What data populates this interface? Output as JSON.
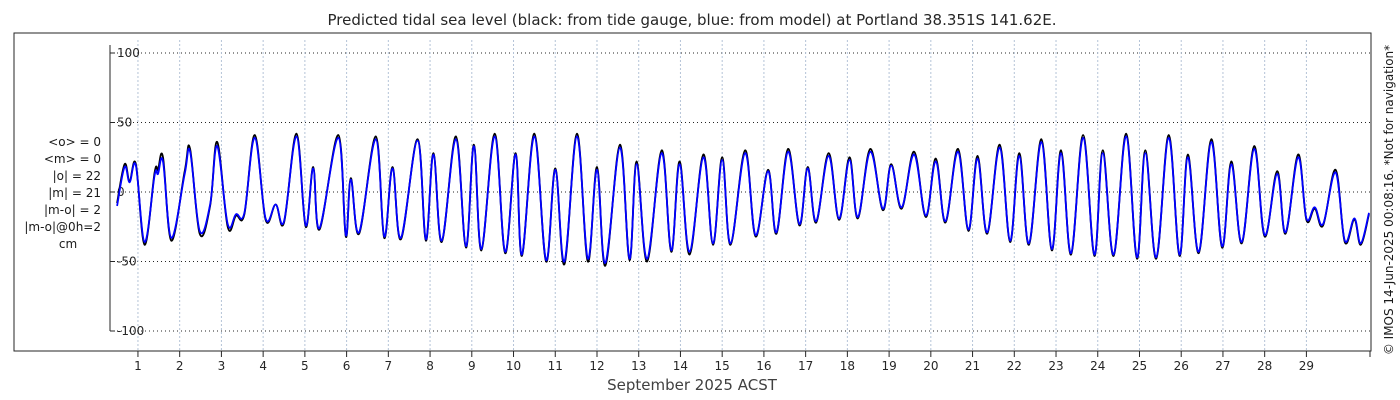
{
  "chart_data": {
    "type": "line",
    "title": "Predicted tidal sea level (black: from tide gauge, blue: from model) at Portland 38.351S 141.62E.",
    "xlabel": "September 2025 ACST",
    "ylabel": "",
    "xlim": [
      0.45,
      30.5
    ],
    "ylim": [
      -110,
      110
    ],
    "yticks": [
      -100,
      -50,
      0,
      50,
      100
    ],
    "ytick_labels": [
      "-100",
      "-50",
      "0",
      "50",
      "100"
    ],
    "xticks": [
      1,
      2,
      3,
      4,
      5,
      6,
      7,
      8,
      9,
      10,
      11,
      12,
      13,
      14,
      15,
      16,
      17,
      18,
      19,
      20,
      21,
      22,
      23,
      24,
      25,
      26,
      27,
      28,
      29
    ],
    "xtick_labels": [
      "1",
      "2",
      "3",
      "4",
      "5",
      "6",
      "7",
      "8",
      "9",
      "10",
      "11",
      "12",
      "13",
      "14",
      "15",
      "16",
      "17",
      "18",
      "19",
      "20",
      "21",
      "22",
      "23",
      "24",
      "25",
      "26",
      "27",
      "28",
      "29"
    ],
    "grid": true,
    "series": [
      {
        "name": "tide gauge",
        "color": "#000000",
        "points": [
          [
            0.5,
            -8
          ],
          [
            0.68,
            20
          ],
          [
            0.8,
            8
          ],
          [
            0.95,
            20
          ],
          [
            1.16,
            -38
          ],
          [
            1.4,
            14
          ],
          [
            1.48,
            16
          ],
          [
            1.6,
            25
          ],
          [
            1.8,
            -35
          ],
          [
            2.12,
            15
          ],
          [
            2.25,
            31
          ],
          [
            2.48,
            -30
          ],
          [
            2.73,
            -10
          ],
          [
            2.9,
            36
          ],
          [
            3.15,
            -25
          ],
          [
            3.35,
            -17
          ],
          [
            3.55,
            -16
          ],
          [
            3.8,
            41
          ],
          [
            4.06,
            -20
          ],
          [
            4.3,
            -9
          ],
          [
            4.5,
            -22
          ],
          [
            4.8,
            42
          ],
          [
            5.02,
            -25
          ],
          [
            5.2,
            18
          ],
          [
            5.35,
            -27
          ],
          [
            5.8,
            41
          ],
          [
            5.98,
            -32
          ],
          [
            6.1,
            10
          ],
          [
            6.3,
            -30
          ],
          [
            6.7,
            40
          ],
          [
            6.9,
            -33
          ],
          [
            7.1,
            18
          ],
          [
            7.3,
            -34
          ],
          [
            7.7,
            38
          ],
          [
            7.9,
            -35
          ],
          [
            8.08,
            28
          ],
          [
            8.28,
            -36
          ],
          [
            8.62,
            40
          ],
          [
            8.86,
            -40
          ],
          [
            9.05,
            34
          ],
          [
            9.23,
            -42
          ],
          [
            9.55,
            42
          ],
          [
            9.8,
            -44
          ],
          [
            10.05,
            28
          ],
          [
            10.2,
            -46
          ],
          [
            10.5,
            42
          ],
          [
            10.78,
            -50
          ],
          [
            11.0,
            17
          ],
          [
            11.22,
            -52
          ],
          [
            11.52,
            42
          ],
          [
            11.78,
            -50
          ],
          [
            12.0,
            18
          ],
          [
            12.2,
            -53
          ],
          [
            12.55,
            34
          ],
          [
            12.78,
            -49
          ],
          [
            12.95,
            22
          ],
          [
            13.2,
            -50
          ],
          [
            13.55,
            30
          ],
          [
            13.78,
            -43
          ],
          [
            13.98,
            22
          ],
          [
            14.22,
            -45
          ],
          [
            14.55,
            27
          ],
          [
            14.78,
            -38
          ],
          [
            15.0,
            25
          ],
          [
            15.2,
            -38
          ],
          [
            15.55,
            30
          ],
          [
            15.8,
            -32
          ],
          [
            16.1,
            16
          ],
          [
            16.3,
            -30
          ],
          [
            16.58,
            31
          ],
          [
            16.85,
            -24
          ],
          [
            17.05,
            18
          ],
          [
            17.25,
            -22
          ],
          [
            17.55,
            28
          ],
          [
            17.8,
            -20
          ],
          [
            18.05,
            25
          ],
          [
            18.25,
            -19
          ],
          [
            18.55,
            31
          ],
          [
            18.85,
            -13
          ],
          [
            19.05,
            20
          ],
          [
            19.3,
            -12
          ],
          [
            19.6,
            29
          ],
          [
            19.88,
            -18
          ],
          [
            20.12,
            24
          ],
          [
            20.35,
            -22
          ],
          [
            20.65,
            31
          ],
          [
            20.9,
            -28
          ],
          [
            21.12,
            26
          ],
          [
            21.35,
            -30
          ],
          [
            21.65,
            34
          ],
          [
            21.9,
            -36
          ],
          [
            22.12,
            28
          ],
          [
            22.35,
            -38
          ],
          [
            22.65,
            38
          ],
          [
            22.9,
            -42
          ],
          [
            23.12,
            30
          ],
          [
            23.36,
            -45
          ],
          [
            23.65,
            41
          ],
          [
            23.92,
            -46
          ],
          [
            24.12,
            30
          ],
          [
            24.38,
            -46
          ],
          [
            24.68,
            42
          ],
          [
            24.94,
            -48
          ],
          [
            25.14,
            30
          ],
          [
            25.4,
            -48
          ],
          [
            25.7,
            41
          ],
          [
            25.96,
            -46
          ],
          [
            26.16,
            27
          ],
          [
            26.42,
            -44
          ],
          [
            26.72,
            38
          ],
          [
            26.98,
            -40
          ],
          [
            27.2,
            22
          ],
          [
            27.45,
            -37
          ],
          [
            27.75,
            33
          ],
          [
            28.0,
            -32
          ],
          [
            28.3,
            15
          ],
          [
            28.5,
            -30
          ],
          [
            28.8,
            27
          ],
          [
            29.0,
            -20
          ],
          [
            29.2,
            -12
          ],
          [
            29.4,
            -24
          ],
          [
            29.7,
            16
          ],
          [
            29.92,
            -36
          ],
          [
            30.15,
            -20
          ],
          [
            30.3,
            -38
          ],
          [
            30.5,
            -16
          ]
        ]
      },
      {
        "name": "model",
        "color": "#0000ff",
        "points": [
          [
            0.5,
            -10
          ],
          [
            0.68,
            18
          ],
          [
            0.8,
            7
          ],
          [
            0.95,
            19
          ],
          [
            1.16,
            -36
          ],
          [
            1.4,
            12
          ],
          [
            1.48,
            13
          ],
          [
            1.6,
            22
          ],
          [
            1.8,
            -33
          ],
          [
            2.12,
            13
          ],
          [
            2.25,
            29
          ],
          [
            2.48,
            -28
          ],
          [
            2.73,
            -9
          ],
          [
            2.9,
            33
          ],
          [
            3.15,
            -23
          ],
          [
            3.35,
            -16
          ],
          [
            3.55,
            -15
          ],
          [
            3.8,
            39
          ],
          [
            4.06,
            -19
          ],
          [
            4.3,
            -9
          ],
          [
            4.5,
            -21
          ],
          [
            4.8,
            40
          ],
          [
            5.02,
            -24
          ],
          [
            5.2,
            17
          ],
          [
            5.35,
            -26
          ],
          [
            5.8,
            39
          ],
          [
            5.98,
            -31
          ],
          [
            6.1,
            9
          ],
          [
            6.3,
            -29
          ],
          [
            6.7,
            38
          ],
          [
            6.9,
            -32
          ],
          [
            7.1,
            17
          ],
          [
            7.3,
            -33
          ],
          [
            7.7,
            37
          ],
          [
            7.9,
            -34
          ],
          [
            8.08,
            27
          ],
          [
            8.28,
            -35
          ],
          [
            8.62,
            38
          ],
          [
            8.86,
            -39
          ],
          [
            9.05,
            33
          ],
          [
            9.23,
            -41
          ],
          [
            9.55,
            40
          ],
          [
            9.8,
            -43
          ],
          [
            10.05,
            27
          ],
          [
            10.2,
            -45
          ],
          [
            10.5,
            40
          ],
          [
            10.78,
            -49
          ],
          [
            11.0,
            16
          ],
          [
            11.22,
            -50
          ],
          [
            11.52,
            40
          ],
          [
            11.78,
            -48
          ],
          [
            12.0,
            16
          ],
          [
            12.2,
            -51
          ],
          [
            12.55,
            32
          ],
          [
            12.78,
            -48
          ],
          [
            12.95,
            20
          ],
          [
            13.2,
            -48
          ],
          [
            13.55,
            28
          ],
          [
            13.78,
            -42
          ],
          [
            13.98,
            20
          ],
          [
            14.22,
            -43
          ],
          [
            14.55,
            25
          ],
          [
            14.78,
            -37
          ],
          [
            15.0,
            23
          ],
          [
            15.2,
            -37
          ],
          [
            15.55,
            28
          ],
          [
            15.8,
            -31
          ],
          [
            16.1,
            15
          ],
          [
            16.3,
            -29
          ],
          [
            16.58,
            29
          ],
          [
            16.85,
            -23
          ],
          [
            17.05,
            17
          ],
          [
            17.25,
            -21
          ],
          [
            17.55,
            26
          ],
          [
            17.8,
            -19
          ],
          [
            18.05,
            23
          ],
          [
            18.25,
            -18
          ],
          [
            18.55,
            29
          ],
          [
            18.85,
            -12
          ],
          [
            19.05,
            19
          ],
          [
            19.3,
            -11
          ],
          [
            19.6,
            27
          ],
          [
            19.88,
            -17
          ],
          [
            20.12,
            22
          ],
          [
            20.35,
            -21
          ],
          [
            20.65,
            29
          ],
          [
            20.9,
            -27
          ],
          [
            21.12,
            24
          ],
          [
            21.35,
            -29
          ],
          [
            21.65,
            32
          ],
          [
            21.9,
            -35
          ],
          [
            22.12,
            26
          ],
          [
            22.35,
            -37
          ],
          [
            22.65,
            36
          ],
          [
            22.9,
            -41
          ],
          [
            23.12,
            28
          ],
          [
            23.36,
            -44
          ],
          [
            23.65,
            39
          ],
          [
            23.92,
            -45
          ],
          [
            24.12,
            28
          ],
          [
            24.38,
            -45
          ],
          [
            24.68,
            40
          ],
          [
            24.94,
            -47
          ],
          [
            25.14,
            28
          ],
          [
            25.4,
            -47
          ],
          [
            25.7,
            39
          ],
          [
            25.96,
            -45
          ],
          [
            26.16,
            25
          ],
          [
            26.42,
            -43
          ],
          [
            26.72,
            36
          ],
          [
            26.98,
            -39
          ],
          [
            27.2,
            20
          ],
          [
            27.45,
            -36
          ],
          [
            27.75,
            31
          ],
          [
            28.0,
            -31
          ],
          [
            28.3,
            13
          ],
          [
            28.5,
            -29
          ],
          [
            28.8,
            25
          ],
          [
            29.0,
            -19
          ],
          [
            29.2,
            -11
          ],
          [
            29.4,
            -23
          ],
          [
            29.7,
            14
          ],
          [
            29.92,
            -35
          ],
          [
            30.15,
            -19
          ],
          [
            30.3,
            -37
          ],
          [
            30.5,
            -15
          ]
        ]
      }
    ],
    "stats": [
      "<o> = 0",
      "<m> = 0",
      "|o| = 22",
      "|m| = 21",
      "|m-o| = 2",
      "|m-o|@0h=2",
      "cm"
    ],
    "side_note": "© IMOS 14-Jun-2025 00:08:16. *Not for navigation*"
  }
}
